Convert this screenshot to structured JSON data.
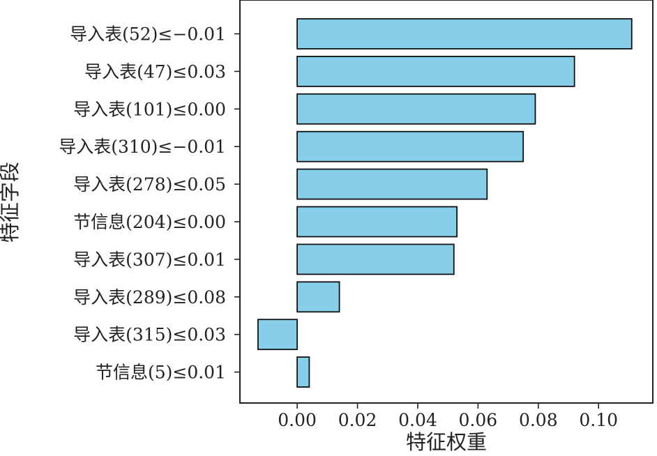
{
  "chart_data": {
    "type": "bar",
    "orientation": "horizontal",
    "title": "",
    "xlabel": "特征权重",
    "ylabel": "特征字段",
    "categories": [
      "导入表(52)≤−0.01",
      "导入表(47)≤0.03",
      "导入表(101)≤0.00",
      "导入表(310)≤−0.01",
      "导入表(278)≤0.05",
      "节信息(204)≤0.00",
      "导入表(307)≤0.01",
      "导入表(289)≤0.08",
      "导入表(315)≤0.03",
      "节信息(5)≤0.01"
    ],
    "values": [
      0.111,
      0.092,
      0.079,
      0.075,
      0.063,
      0.053,
      0.052,
      0.014,
      -0.013,
      0.004
    ],
    "xlim": [
      -0.019,
      0.118
    ],
    "xticks": [
      0.0,
      0.02,
      0.04,
      0.06,
      0.08,
      0.1
    ],
    "xtick_labels": [
      "0.00",
      "0.02",
      "0.04",
      "0.06",
      "0.08",
      "0.10"
    ],
    "grid": false,
    "legend": "none",
    "bar_fill": "#87CEEB",
    "bar_stroke": "#111111",
    "axis_color": "#222222"
  }
}
